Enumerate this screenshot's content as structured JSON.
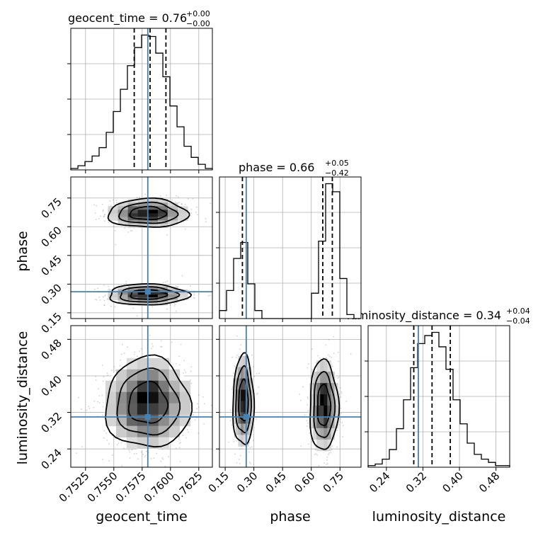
{
  "chart_data": {
    "type": "corner",
    "parameters": [
      "geocent_time",
      "phase",
      "luminosity_distance"
    ],
    "truths": {
      "geocent_time": 0.758,
      "phase": 0.26,
      "luminosity_distance": 0.31
    },
    "titles": [
      {
        "param": "geocent_time",
        "text": "geocent_time = 0.76",
        "plus": "+0.00",
        "minus": "−0.00"
      },
      {
        "param": "phase",
        "text": "phase = 0.66",
        "plus": "+0.05",
        "minus": "−0.42"
      },
      {
        "param": "luminosity_distance",
        "text": "luminosity_distance = 0.34",
        "plus": "+0.04",
        "minus": "−0.04"
      }
    ],
    "axes": {
      "geocent_time": {
        "range": [
          0.7512,
          0.7637
        ],
        "ticks": [
          0.7525,
          0.755,
          0.7575,
          0.76,
          0.7625
        ],
        "tick_labels": [
          "0.7525",
          "0.7550",
          "0.7575",
          "0.7600",
          "0.7625"
        ],
        "label": "geocent_time"
      },
      "phase": {
        "range": [
          0.12,
          0.86
        ],
        "ticks": [
          0.15,
          0.3,
          0.45,
          0.6,
          0.75
        ],
        "tick_labels": [
          "0.15",
          "0.30",
          "0.45",
          "0.60",
          "0.75"
        ],
        "label": "phase"
      },
      "luminosity_distance": {
        "range": [
          0.2,
          0.51
        ],
        "ticks": [
          0.24,
          0.32,
          0.4,
          0.48
        ],
        "tick_labels": [
          "0.24",
          "0.32",
          "0.40",
          "0.48"
        ],
        "label": "luminosity_distance"
      }
    },
    "histograms": {
      "geocent_time": {
        "bin_edges": [
          0.7512,
          0.75183,
          0.75245,
          0.75308,
          0.7537,
          0.75433,
          0.75495,
          0.75558,
          0.7562,
          0.75683,
          0.75745,
          0.75808,
          0.7587,
          0.75933,
          0.75995,
          0.76058,
          0.7612,
          0.76183,
          0.76245,
          0.76308,
          0.7637
        ],
        "counts": [
          1,
          3,
          6,
          10,
          16,
          27,
          42,
          58,
          75,
          88,
          97,
          96,
          84,
          67,
          46,
          31,
          17,
          9,
          4,
          1
        ],
        "quantiles": [
          0.7568,
          0.7582,
          0.7596
        ]
      },
      "phase": {
        "bin_edges": [
          0.12,
          0.157,
          0.194,
          0.231,
          0.268,
          0.305,
          0.342,
          0.379,
          0.416,
          0.453,
          0.49,
          0.527,
          0.564,
          0.601,
          0.638,
          0.675,
          0.712,
          0.749,
          0.786,
          0.823,
          0.86
        ],
        "counts": [
          6,
          21,
          45,
          57,
          26,
          6,
          0,
          0,
          0,
          0,
          0,
          0,
          0,
          19,
          58,
          101,
          95,
          30,
          3,
          0
        ],
        "quantiles": [
          0.24,
          0.66,
          0.71
        ]
      },
      "luminosity_distance": {
        "bin_edges": [
          0.2,
          0.2155,
          0.231,
          0.2465,
          0.262,
          0.2775,
          0.293,
          0.3085,
          0.324,
          0.3395,
          0.355,
          0.3705,
          0.386,
          0.4015,
          0.417,
          0.4325,
          0.448,
          0.4635,
          0.479,
          0.4945,
          0.51
        ],
        "counts": [
          1,
          2,
          5,
          11,
          24,
          42,
          62,
          77,
          82,
          84,
          75,
          61,
          42,
          27,
          15,
          8,
          5,
          3,
          1,
          1
        ],
        "quantiles": [
          0.3,
          0.34,
          0.38
        ]
      }
    },
    "joint": {
      "phase_vs_geocent_time": {
        "modes": [
          {
            "center": [
              0.758,
              0.67
            ],
            "spread": [
              0.0016,
              0.034
            ],
            "rel_weight": 0.62
          },
          {
            "center": [
              0.758,
              0.245
            ],
            "spread": [
              0.0016,
              0.025
            ],
            "rel_weight": 0.38
          }
        ]
      },
      "luminosity_distance_vs_geocent_time": {
        "modes": [
          {
            "center": [
              0.758,
              0.34
            ],
            "spread": [
              0.0017,
              0.045
            ],
            "rel_weight": 1.0
          }
        ]
      },
      "luminosity_distance_vs_phase": {
        "modes": [
          {
            "center": [
              0.245,
              0.345
            ],
            "spread": [
              0.025,
              0.045
            ],
            "rel_weight": 0.38
          },
          {
            "center": [
              0.665,
              0.335
            ],
            "spread": [
              0.034,
              0.045
            ],
            "rel_weight": 0.62
          }
        ]
      }
    },
    "grid": true,
    "truth_color": "#4682b4",
    "histogram_color": "#000000",
    "quantile_style": "dashed"
  }
}
